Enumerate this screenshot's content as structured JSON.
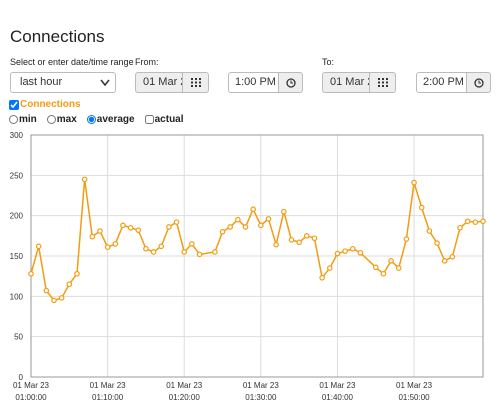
{
  "header": {
    "title": "Connections"
  },
  "form": {
    "range_label": "Select or enter date/time range",
    "range_value": "last hour",
    "from_label": "From:",
    "from_date": "01 Mar 2",
    "from_time": "1:00 PM",
    "to_label": "To:",
    "to_date": "01 Mar 2",
    "to_time": "2:00 PM"
  },
  "series_toggle": {
    "label": "Connections",
    "checked": true
  },
  "options": [
    {
      "label": "min",
      "checked": false
    },
    {
      "label": "max",
      "checked": false
    },
    {
      "label": "average",
      "checked": true
    },
    {
      "label": "actual",
      "checked": false
    }
  ],
  "chart_data": {
    "type": "line",
    "color": "#f39c12",
    "x_date_label": "01 Mar 23",
    "x": [
      "01:00:00",
      "01:01:00",
      "01:02:00",
      "01:03:00",
      "01:04:00",
      "01:05:00",
      "01:06:00",
      "01:07:00",
      "01:08:00",
      "01:09:00",
      "01:10:00",
      "01:11:00",
      "01:12:00",
      "01:13:00",
      "01:14:00",
      "01:15:00",
      "01:16:00",
      "01:17:00",
      "01:18:00",
      "01:19:00",
      "01:20:00",
      "01:21:00",
      "01:22:00",
      "01:24:00",
      "01:25:00",
      "01:26:00",
      "01:27:00",
      "01:28:00",
      "01:29:00",
      "01:30:00",
      "01:31:00",
      "01:32:00",
      "01:33:00",
      "01:34:00",
      "01:35:00",
      "01:36:00",
      "01:37:00",
      "01:38:00",
      "01:39:00",
      "01:40:00",
      "01:41:00",
      "01:42:00",
      "01:43:00",
      "01:45:00",
      "01:46:00",
      "01:47:00",
      "01:48:00",
      "01:49:00",
      "01:50:00",
      "01:51:00",
      "01:52:00",
      "01:53:00",
      "01:54:00",
      "01:55:00",
      "01:56:00",
      "01:57:00",
      "01:58:00",
      "01:59:00"
    ],
    "values": [
      128,
      162,
      107,
      95,
      98,
      115,
      128,
      245,
      174,
      181,
      161,
      165,
      188,
      185,
      182,
      159,
      155,
      162,
      186,
      192,
      155,
      165,
      152,
      155,
      180,
      186,
      195,
      186,
      208,
      188,
      196,
      164,
      205,
      170,
      167,
      175,
      172,
      123,
      135,
      153,
      156,
      159,
      154,
      136,
      128,
      144,
      135,
      171,
      241,
      210,
      181,
      166,
      144,
      149,
      185,
      193,
      192,
      193
    ],
    "xlim": [
      "01:00:00",
      "01:59:00"
    ],
    "xticks": [
      "01:00:00",
      "01:10:00",
      "01:20:00",
      "01:30:00",
      "01:40:00",
      "01:50:00"
    ],
    "ylim": [
      0,
      300
    ],
    "yticks": [
      0,
      50,
      100,
      150,
      200,
      250,
      300
    ],
    "grid": true
  }
}
